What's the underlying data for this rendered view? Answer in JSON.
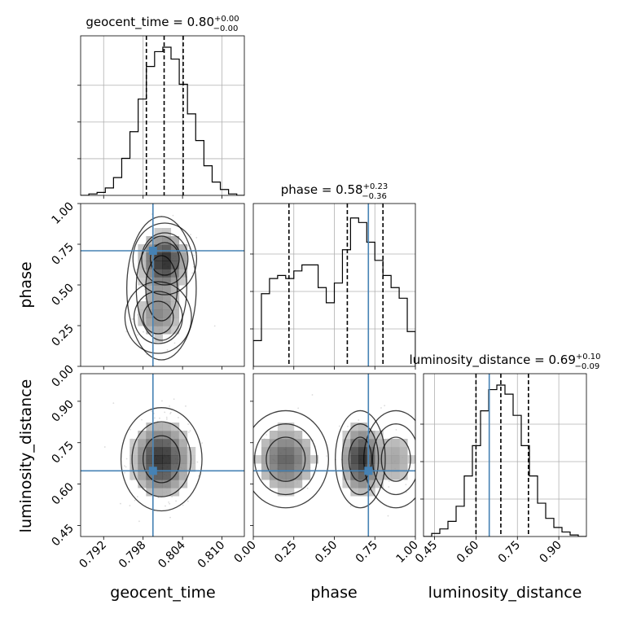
{
  "chart_data": {
    "type": "corner",
    "parameters": [
      "geocent_time",
      "phase",
      "luminosity_distance"
    ],
    "axis_labels": {
      "geocent_time": "geocent_time",
      "phase": "phase",
      "luminosity_distance": "luminosity_distance"
    },
    "titles": [
      {
        "parameter": "geocent_time",
        "text": "geocent_time = 0.80",
        "sup": "+0.00",
        "sub": "−0.00"
      },
      {
        "parameter": "phase",
        "text": "phase = 0.58",
        "sup": "+0.23",
        "sub": "−0.36"
      },
      {
        "parameter": "luminosity_distance",
        "text": "luminosity_distance = 0.69",
        "sup": "+0.10",
        "sub": "−0.09"
      }
    ],
    "ranges": {
      "geocent_time": [
        0.7885,
        0.8134
      ],
      "phase": [
        0.0,
        1.0
      ],
      "luminosity_distance": [
        0.41,
        1.0
      ]
    },
    "ticks": {
      "geocent_time": {
        "values": [
          0.792,
          0.798,
          0.804,
          0.81
        ],
        "labels": [
          "0.792",
          "0.798",
          "0.804",
          "0.810"
        ]
      },
      "phase": {
        "values": [
          0.0,
          0.25,
          0.5,
          0.75,
          1.0
        ],
        "labels": [
          "0.00",
          "0.25",
          "0.50",
          "0.75",
          "1.00"
        ]
      },
      "luminosity_distance": {
        "values": [
          0.45,
          0.6,
          0.75,
          0.9
        ],
        "labels": [
          "0.45",
          "0.60",
          "0.75",
          "0.90"
        ]
      }
    },
    "truths": {
      "geocent_time": 0.7995,
      "phase": 0.71,
      "luminosity_distance": 0.648
    },
    "quantiles": {
      "geocent_time": [
        0.7985,
        0.8012,
        0.8041
      ],
      "phase": [
        0.22,
        0.58,
        0.8
      ],
      "luminosity_distance": [
        0.6,
        0.69,
        0.79
      ]
    },
    "histograms": {
      "geocent_time": {
        "edges": [
          0.7885,
          0.78975,
          0.791,
          0.79225,
          0.7935,
          0.79475,
          0.796,
          0.79725,
          0.7985,
          0.79975,
          0.801,
          0.80225,
          0.8035,
          0.80475,
          0.806,
          0.80725,
          0.8085,
          0.80975,
          0.811,
          0.81225,
          0.8135
        ],
        "counts": [
          0.0,
          0.01,
          0.02,
          0.05,
          0.12,
          0.25,
          0.43,
          0.65,
          0.87,
          0.97,
          1.0,
          0.92,
          0.75,
          0.55,
          0.37,
          0.2,
          0.09,
          0.04,
          0.01,
          0.0
        ]
      },
      "phase": {
        "edges": [
          0.0,
          0.05,
          0.1,
          0.15,
          0.2,
          0.25,
          0.3,
          0.35,
          0.4,
          0.45,
          0.5,
          0.55,
          0.6,
          0.65,
          0.7,
          0.75,
          0.8,
          0.85,
          0.9,
          0.95,
          1.0
        ],
        "counts": [
          0.17,
          0.48,
          0.58,
          0.6,
          0.58,
          0.63,
          0.67,
          0.67,
          0.52,
          0.42,
          0.55,
          0.77,
          0.98,
          0.95,
          0.82,
          0.7,
          0.6,
          0.52,
          0.45,
          0.23
        ]
      },
      "luminosity_distance": {
        "edges": [
          0.41,
          0.4395,
          0.469,
          0.4985,
          0.528,
          0.5575,
          0.587,
          0.6165,
          0.646,
          0.6755,
          0.705,
          0.7345,
          0.764,
          0.7935,
          0.823,
          0.8525,
          0.882,
          0.9115,
          0.941,
          0.9705,
          1.0
        ],
        "counts": [
          0.0,
          0.02,
          0.05,
          0.1,
          0.2,
          0.4,
          0.6,
          0.83,
          0.97,
          1.0,
          0.94,
          0.8,
          0.6,
          0.4,
          0.22,
          0.12,
          0.06,
          0.03,
          0.01,
          0.0
        ]
      }
    },
    "posteriors": [
      {
        "id": "phase_vs_geocent_time",
        "mix": [
          {
            "w": 0.55,
            "mx": 0.8013,
            "my": 0.66,
            "sx": 0.0022,
            "sy": 0.1
          },
          {
            "w": 0.25,
            "mx": 0.8003,
            "my": 0.3,
            "sx": 0.0023,
            "sy": 0.1
          },
          {
            "w": 0.2,
            "mx": 0.8008,
            "my": 0.48,
            "sx": 0.0024,
            "sy": 0.2
          }
        ]
      },
      {
        "id": "luminosity_distance_vs_geocent_time",
        "mix": [
          {
            "w": 1.0,
            "mx": 0.8008,
            "my": 0.69,
            "sx": 0.0028,
            "sy": 0.085
          }
        ]
      },
      {
        "id": "luminosity_distance_vs_phase",
        "mix": [
          {
            "w": 0.45,
            "mx": 0.66,
            "my": 0.69,
            "sx": 0.07,
            "sy": 0.08
          },
          {
            "w": 0.35,
            "mx": 0.2,
            "my": 0.69,
            "sx": 0.12,
            "sy": 0.08
          },
          {
            "w": 0.2,
            "mx": 0.88,
            "my": 0.69,
            "sx": 0.09,
            "sy": 0.08
          }
        ]
      }
    ],
    "colors": {
      "truth": "#4682b4",
      "hist": "#000000",
      "grid": "#b0b0b0"
    }
  }
}
